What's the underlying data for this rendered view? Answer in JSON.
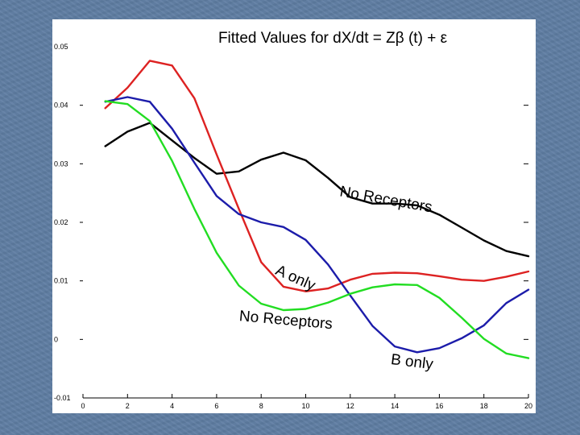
{
  "chart_data": {
    "type": "line",
    "title": "Fitted Values for dX/dt = Zβ (t) + ε",
    "xlabel": "",
    "ylabel": "",
    "xlim": [
      0,
      20
    ],
    "ylim": [
      -0.01,
      0.05
    ],
    "grid": false,
    "x_ticks": [
      "0",
      "2",
      "4",
      "6",
      "8",
      "10",
      "12",
      "14",
      "16",
      "18",
      "20"
    ],
    "y_ticks": [
      "0.05",
      "0.04",
      "0.03",
      "0.02",
      "0.01",
      "0",
      "-0.01"
    ],
    "x": [
      1,
      2,
      3,
      4,
      5,
      6,
      7,
      8,
      9,
      10,
      11,
      12,
      13,
      14,
      15,
      16,
      17,
      18,
      19,
      20
    ],
    "series": [
      {
        "color": "#000000",
        "values": [
          0.033,
          0.0355,
          0.037,
          0.034,
          0.031,
          0.0283,
          0.0287,
          0.0307,
          0.0319,
          0.0306,
          0.0276,
          0.0243,
          0.0232,
          0.0232,
          0.0229,
          0.0213,
          0.0191,
          0.0169,
          0.0151,
          0.0142
        ]
      },
      {
        "color": "#dd2222",
        "values": [
          0.0395,
          0.043,
          0.0476,
          0.0468,
          0.0412,
          0.0316,
          0.0223,
          0.0132,
          0.009,
          0.0082,
          0.0087,
          0.0102,
          0.0112,
          0.0114,
          0.0113,
          0.0108,
          0.0102,
          0.01,
          0.0107,
          0.0116
        ]
      },
      {
        "color": "#1c1caa",
        "values": [
          0.0406,
          0.0414,
          0.0406,
          0.036,
          0.0302,
          0.0245,
          0.0214,
          0.02,
          0.0192,
          0.017,
          0.0128,
          0.0075,
          0.0023,
          -0.0012,
          -0.0022,
          -0.0015,
          0.0002,
          0.0024,
          0.0062,
          0.0085
        ]
      },
      {
        "color": "#22dd22",
        "values": [
          0.0407,
          0.0402,
          0.0373,
          0.0305,
          0.0223,
          0.0148,
          0.0092,
          0.0061,
          0.005,
          0.0052,
          0.0063,
          0.0078,
          0.0089,
          0.0094,
          0.0093,
          0.0071,
          0.0037,
          0.0001,
          -0.0024,
          -0.0032
        ]
      }
    ],
    "annotations": [
      {
        "text": "No Receptors",
        "x": 11.5,
        "y": 0.0245,
        "rotate": 10
      },
      {
        "text": "A only",
        "x": 8.6,
        "y": 0.0112,
        "rotate": 24
      },
      {
        "text": "No Receptors",
        "x": 7.0,
        "y": 0.0032,
        "rotate": 5
      },
      {
        "text": "B only",
        "x": 13.8,
        "y": -0.0042,
        "rotate": 7
      }
    ]
  }
}
